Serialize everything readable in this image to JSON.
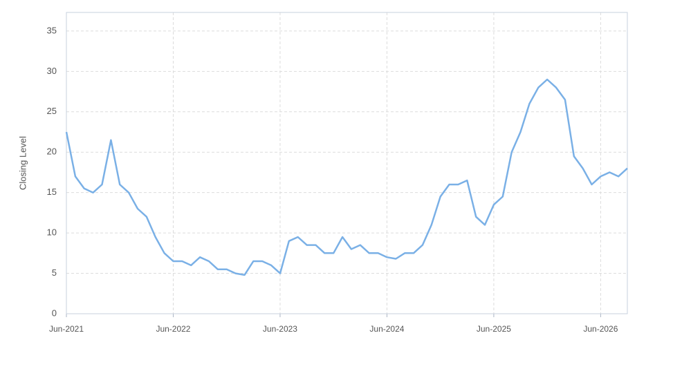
{
  "chart_data": {
    "type": "line",
    "y_label": "Closing Level",
    "x": [
      "2021-06",
      "2021-07",
      "2021-08",
      "2021-09",
      "2021-10",
      "2021-11",
      "2021-12",
      "2022-01",
      "2022-02",
      "2022-03",
      "2022-04",
      "2022-05",
      "2022-06",
      "2022-07",
      "2022-08",
      "2022-09",
      "2022-10",
      "2022-11",
      "2022-12",
      "2023-01",
      "2023-02",
      "2023-03",
      "2023-04",
      "2023-05",
      "2023-06",
      "2023-07",
      "2023-08",
      "2023-09",
      "2023-10",
      "2023-11",
      "2023-12",
      "2024-01",
      "2024-02",
      "2024-03",
      "2024-04",
      "2024-05",
      "2024-06",
      "2024-07",
      "2024-08",
      "2024-09",
      "2024-10",
      "2024-11",
      "2024-12",
      "2025-01",
      "2025-02",
      "2025-03",
      "2025-04",
      "2025-05",
      "2025-06",
      "2025-07",
      "2025-08",
      "2025-09",
      "2025-10",
      "2025-11",
      "2025-12",
      "2026-01",
      "2026-02",
      "2026-03",
      "2026-04",
      "2026-05",
      "2026-06",
      "2026-07",
      "2026-08",
      "2026-09"
    ],
    "series": [
      {
        "name": "Closing Level",
        "color": "#7ab0e6",
        "values": [
          22.5,
          17,
          15.5,
          15,
          16,
          21.5,
          16,
          15,
          13,
          12,
          9.5,
          7.5,
          6.5,
          6.5,
          6,
          7,
          6.5,
          5.5,
          5.5,
          5,
          4.8,
          6.5,
          6.5,
          6,
          5,
          9,
          9.5,
          8.5,
          8.5,
          7.5,
          7.5,
          9.5,
          8,
          8.5,
          7.5,
          7.5,
          7,
          6.8,
          7.5,
          7.5,
          8.5,
          11,
          14.5,
          16,
          16,
          16.5,
          12,
          11,
          13.5,
          14.5,
          20,
          22.5,
          26,
          28,
          29,
          28,
          26.5,
          19.5,
          18,
          16,
          17,
          17.5,
          17,
          18
        ]
      }
    ],
    "xlim": [
      "2021-06",
      "2026-09"
    ],
    "xticks": [
      {
        "value": "2021-06",
        "label": "Jun-2021"
      },
      {
        "value": "2022-06",
        "label": "Jun-2022"
      },
      {
        "value": "2023-06",
        "label": "Jun-2023"
      },
      {
        "value": "2024-06",
        "label": "Jun-2024"
      },
      {
        "value": "2025-06",
        "label": "Jun-2025"
      },
      {
        "value": "2026-06",
        "label": "Jun-2026"
      }
    ],
    "ylim": [
      0,
      37.3
    ],
    "yticks": [
      0,
      5,
      10,
      15,
      20,
      25,
      30,
      35
    ],
    "grid": true
  }
}
